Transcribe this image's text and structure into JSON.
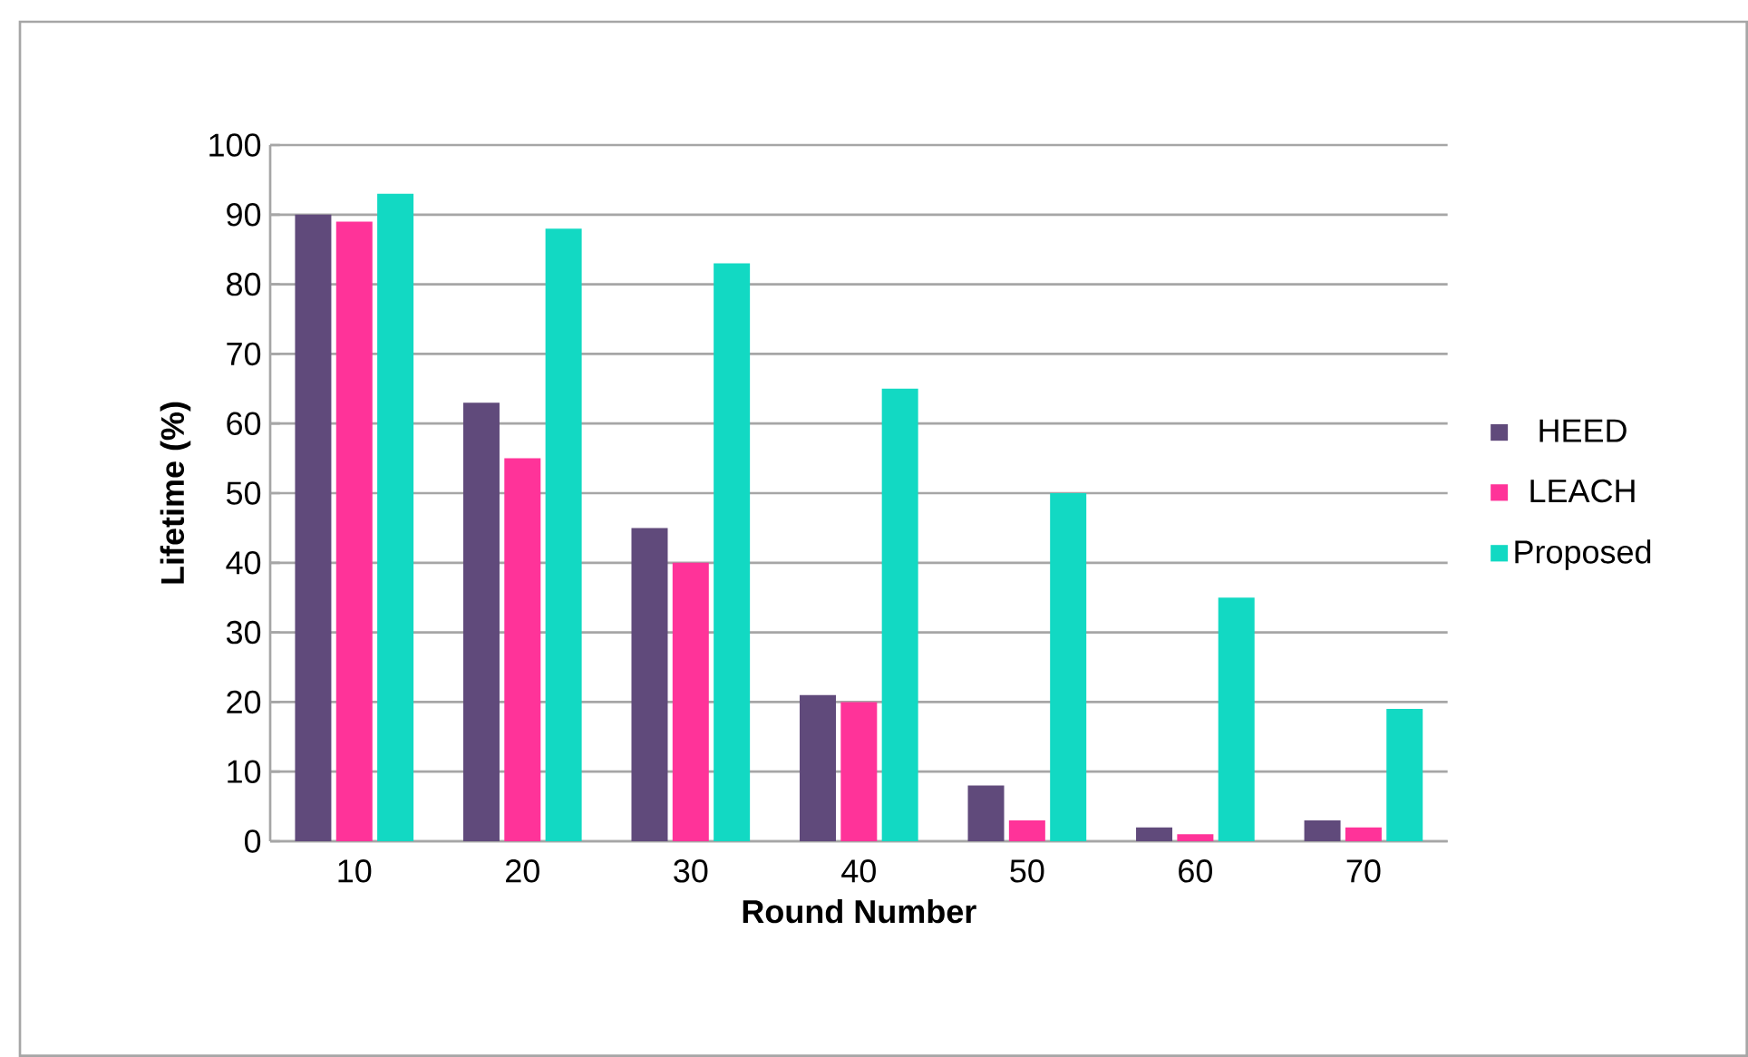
{
  "chart_data": {
    "type": "bar",
    "xlabel": "Round Number",
    "ylabel": "Lifetime (%)",
    "categories": [
      "10",
      "20",
      "30",
      "40",
      "50",
      "60",
      "70"
    ],
    "series": [
      {
        "name": "HEED",
        "color": "#604a7b",
        "values": [
          90,
          63,
          45,
          21,
          8,
          2,
          3
        ]
      },
      {
        "name": "LEACH",
        "color": "#ff3399",
        "values": [
          89,
          55,
          40,
          20,
          3,
          1,
          2
        ]
      },
      {
        "name": "Proposed",
        "color": "#12d9c3",
        "values": [
          93,
          88,
          83,
          65,
          50,
          35,
          19
        ]
      }
    ],
    "ylim": [
      0,
      100
    ],
    "yticks": [
      0,
      10,
      20,
      30,
      40,
      50,
      60,
      70,
      80,
      90,
      100
    ],
    "grid": "y",
    "legend": "right"
  }
}
